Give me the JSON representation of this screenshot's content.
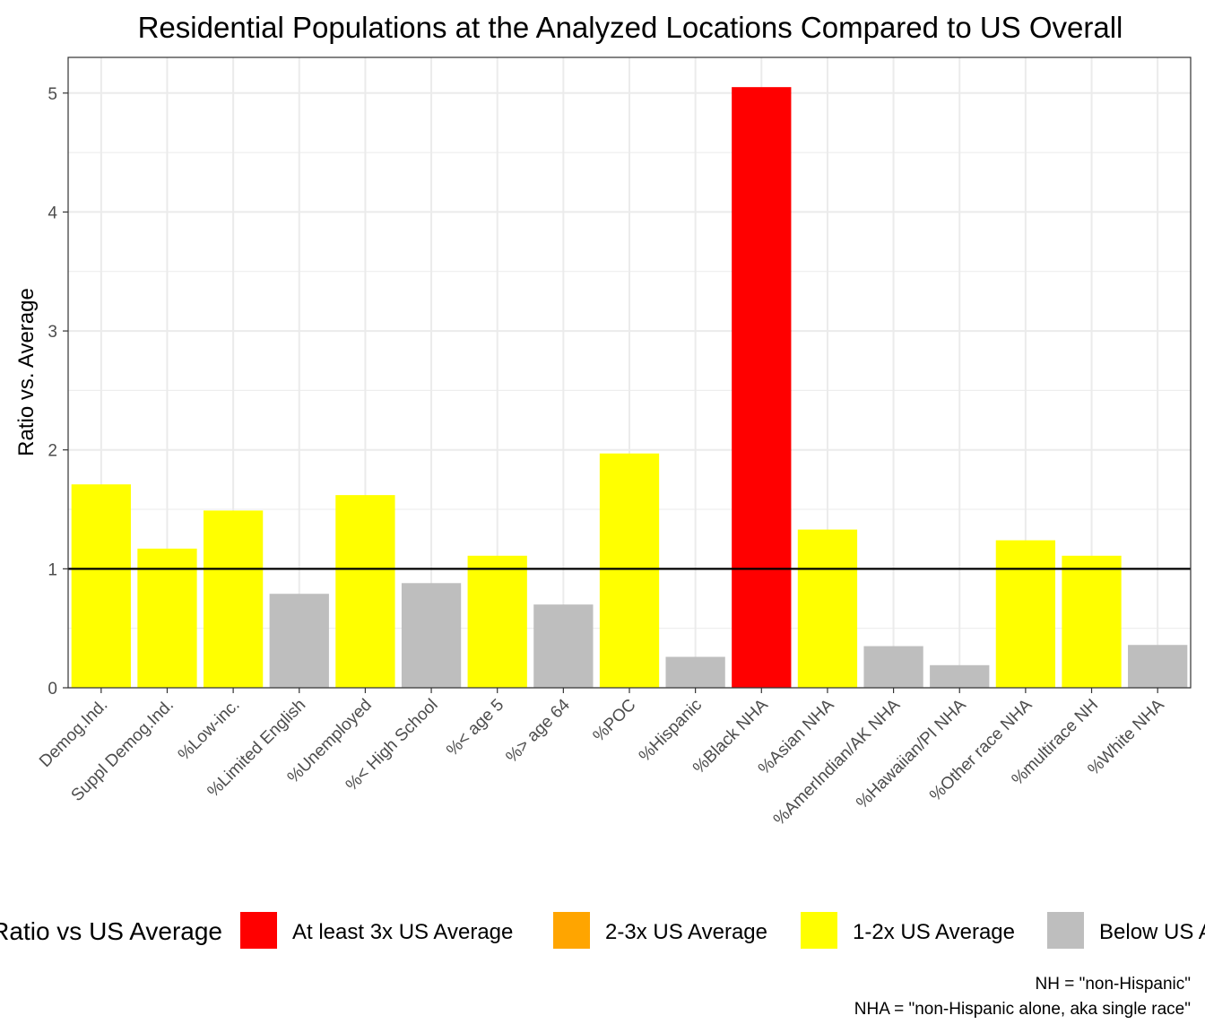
{
  "chart_data": {
    "type": "bar",
    "title": "Residential Populations at the Analyzed Locations Compared to US Overall",
    "xlabel": "",
    "ylabel": "Ratio vs. Average",
    "ylim": [
      0,
      5.3
    ],
    "yticks": [
      0,
      1,
      2,
      3,
      4,
      5
    ],
    "reference_line": 1,
    "grid": true,
    "categories": [
      "Demog.Ind.",
      "Suppl Demog.Ind.",
      "%Low-inc.",
      "%Limited English",
      "%Unemployed",
      "%< High School",
      "%< age 5",
      "%> age 64",
      "%POC",
      "%Hispanic",
      "%Black NHA",
      "%Asian NHA",
      "%AmerIndian/AK NHA",
      "%Hawaiian/PI NHA",
      "%Other race NHA",
      "%multirace NH",
      "%White NHA"
    ],
    "values": [
      1.71,
      1.17,
      1.49,
      0.79,
      1.62,
      0.88,
      1.11,
      0.7,
      1.97,
      0.26,
      5.05,
      1.33,
      0.35,
      0.19,
      1.24,
      1.11,
      0.36
    ],
    "groups": [
      "1-2x US Average",
      "1-2x US Average",
      "1-2x US Average",
      "Below US Average",
      "1-2x US Average",
      "Below US Average",
      "1-2x US Average",
      "Below US Average",
      "1-2x US Average",
      "Below US Average",
      "At least 3x US Average",
      "1-2x US Average",
      "Below US Average",
      "Below US Average",
      "1-2x US Average",
      "1-2x US Average",
      "Below US Average"
    ],
    "legend": {
      "title": "Ratio vs US Average",
      "position": "bottom",
      "entries": [
        {
          "label": "At least 3x US Average",
          "color": "#ff0000"
        },
        {
          "label": "2-3x US Average",
          "color": "#ffa500"
        },
        {
          "label": "1-2x US Average",
          "color": "#ffff00"
        },
        {
          "label": "Below US Average",
          "color": "#bebebe"
        }
      ]
    },
    "caption": [
      "NH = \"non-Hispanic\"",
      "NHA = \"non-Hispanic alone, aka single race\""
    ]
  }
}
